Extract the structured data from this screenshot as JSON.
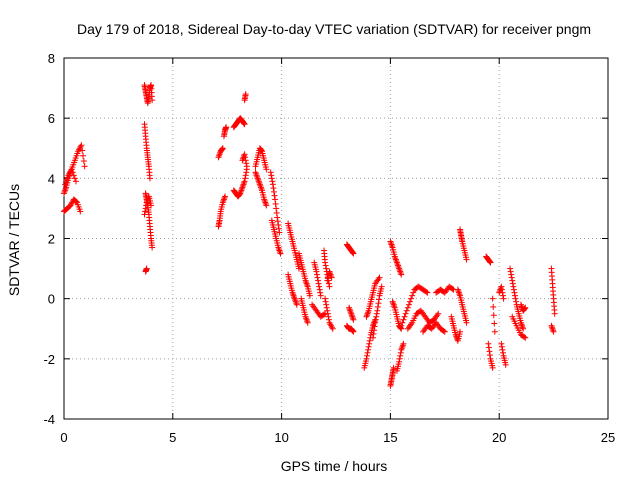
{
  "chart_data": {
    "type": "scatter",
    "title": "Day 179 of 2018, Sidereal Day-to-day VTEC variation (SDTVAR) for receiver pngm",
    "xlabel": "GPS time / hours",
    "ylabel": "SDTVAR / TECUs",
    "xlim": [
      0,
      25
    ],
    "ylim": [
      -4,
      8
    ],
    "xticks": [
      0,
      5,
      10,
      15,
      20,
      25
    ],
    "yticks": [
      -4,
      -2,
      0,
      2,
      4,
      6,
      8
    ],
    "xtick_labels": [
      "0",
      "5",
      "10",
      "15",
      "20",
      "25"
    ],
    "ytick_labels": [
      "-4",
      "-2",
      "0",
      "2",
      "4",
      "6",
      "8"
    ],
    "grid": true,
    "marker": "+",
    "color": "#ff0000",
    "series_segments": [
      {
        "x": [
          0.0,
          0.15,
          0.3,
          0.45,
          0.6,
          0.75
        ],
        "y": [
          2.9,
          3.0,
          3.1,
          3.3,
          3.2,
          2.9
        ]
      },
      {
        "x": [
          0.0,
          0.1,
          0.2,
          0.35,
          0.5,
          0.65,
          0.8,
          0.95
        ],
        "y": [
          3.5,
          3.7,
          4.0,
          4.3,
          4.6,
          4.9,
          5.1,
          4.4
        ]
      },
      {
        "x": [
          0.05,
          0.2,
          0.35,
          0.55
        ],
        "y": [
          3.8,
          4.1,
          4.3,
          3.9
        ]
      },
      {
        "x": [
          3.7,
          3.75,
          3.8,
          3.85,
          3.9,
          3.95,
          4.0,
          4.05
        ],
        "y": [
          7.1,
          6.9,
          6.7,
          6.5,
          6.7,
          7.0,
          7.1,
          6.6
        ]
      },
      {
        "x": [
          3.7,
          3.75,
          3.8,
          3.85,
          3.9,
          3.95
        ],
        "y": [
          5.8,
          5.4,
          5.0,
          4.7,
          4.4,
          4.0
        ]
      },
      {
        "x": [
          3.75,
          3.8,
          3.85,
          3.9,
          3.95,
          4.0,
          4.05
        ],
        "y": [
          3.5,
          3.3,
          3.1,
          2.8,
          2.4,
          2.0,
          1.7
        ]
      },
      {
        "x": [
          3.7,
          3.8,
          3.9,
          4.0
        ],
        "y": [
          2.8,
          3.2,
          3.4,
          3.1
        ]
      },
      {
        "x": [
          3.75,
          3.8
        ],
        "y": [
          0.9,
          1.0
        ]
      },
      {
        "x": [
          7.1,
          7.15,
          7.2,
          7.3,
          7.4
        ],
        "y": [
          2.4,
          2.6,
          2.9,
          3.2,
          3.4
        ]
      },
      {
        "x": [
          7.1,
          7.2,
          7.3
        ],
        "y": [
          4.7,
          4.9,
          5.0
        ]
      },
      {
        "x": [
          7.35,
          7.4,
          7.45
        ],
        "y": [
          5.4,
          5.6,
          5.7
        ]
      },
      {
        "x": [
          7.8,
          7.9,
          8.0,
          8.1,
          8.2,
          8.3
        ],
        "y": [
          5.7,
          5.8,
          5.9,
          6.0,
          5.9,
          5.8
        ]
      },
      {
        "x": [
          8.3,
          8.35
        ],
        "y": [
          6.6,
          6.8
        ]
      },
      {
        "x": [
          7.8,
          7.9,
          8.0,
          8.1,
          8.2,
          8.3,
          8.4
        ],
        "y": [
          3.6,
          3.5,
          3.4,
          3.5,
          3.7,
          3.9,
          4.3
        ]
      },
      {
        "x": [
          8.2,
          8.3,
          8.4
        ],
        "y": [
          4.6,
          4.8,
          4.4
        ]
      },
      {
        "x": [
          8.8,
          8.9,
          9.0,
          9.1,
          9.2,
          9.3
        ],
        "y": [
          4.4,
          4.7,
          5.0,
          4.9,
          4.6,
          4.3
        ]
      },
      {
        "x": [
          8.8,
          8.9,
          9.0,
          9.1,
          9.2,
          9.3
        ],
        "y": [
          4.2,
          4.0,
          3.8,
          3.6,
          3.3,
          3.1
        ]
      },
      {
        "x": [
          9.5,
          9.6,
          9.7,
          9.8,
          9.9
        ],
        "y": [
          4.2,
          3.8,
          3.3,
          2.7,
          2.2
        ]
      },
      {
        "x": [
          9.55,
          9.65,
          9.75,
          9.85,
          9.95
        ],
        "y": [
          2.6,
          2.3,
          2.0,
          1.7,
          1.5
        ]
      },
      {
        "x": [
          10.3,
          10.4,
          10.5,
          10.6,
          10.7,
          10.8
        ],
        "y": [
          2.5,
          2.2,
          1.9,
          1.6,
          1.3,
          1.0
        ]
      },
      {
        "x": [
          10.3,
          10.4,
          10.5,
          10.6,
          10.7
        ],
        "y": [
          0.8,
          0.5,
          0.2,
          0.0,
          -0.2
        ]
      },
      {
        "x": [
          10.8,
          10.9,
          11.0,
          11.1,
          11.2,
          11.3
        ],
        "y": [
          1.5,
          1.2,
          0.9,
          0.6,
          0.4,
          0.1
        ]
      },
      {
        "x": [
          10.9,
          11.0,
          11.1,
          11.2
        ],
        "y": [
          0.0,
          -0.3,
          -0.6,
          -0.8
        ]
      },
      {
        "x": [
          11.5,
          11.6,
          11.7,
          11.8
        ],
        "y": [
          1.2,
          0.9,
          0.5,
          0.1
        ]
      },
      {
        "x": [
          11.4,
          11.6,
          11.8,
          12.0
        ],
        "y": [
          -0.2,
          -0.4,
          -0.6,
          -0.5
        ]
      },
      {
        "x": [
          11.95,
          12.0,
          12.1,
          12.2
        ],
        "y": [
          1.6,
          1.2,
          0.8,
          0.4
        ]
      },
      {
        "x": [
          12.0,
          12.1,
          12.2,
          12.35
        ],
        "y": [
          0.0,
          -0.4,
          -0.8,
          -1.0
        ]
      },
      {
        "x": [
          12.1,
          12.2,
          12.3
        ],
        "y": [
          0.6,
          0.9,
          0.7
        ]
      },
      {
        "x": [
          13.0,
          13.1,
          13.2,
          13.3
        ],
        "y": [
          1.8,
          1.7,
          1.6,
          1.5
        ]
      },
      {
        "x": [
          13.0,
          13.1,
          13.2,
          13.3
        ],
        "y": [
          -0.9,
          -1.0,
          -1.0,
          -1.1
        ]
      },
      {
        "x": [
          13.1,
          13.2,
          13.3
        ],
        "y": [
          -0.3,
          -0.5,
          -0.7
        ]
      },
      {
        "x": [
          13.8,
          13.9,
          14.0,
          14.1,
          14.2,
          14.3
        ],
        "y": [
          -2.3,
          -2.0,
          -1.6,
          -1.2,
          -0.9,
          -0.7
        ]
      },
      {
        "x": [
          13.9,
          14.0,
          14.1,
          14.2,
          14.3,
          14.5
        ],
        "y": [
          -0.6,
          -0.4,
          -0.1,
          0.2,
          0.5,
          0.7
        ]
      },
      {
        "x": [
          14.2,
          14.3,
          14.4,
          14.5,
          14.6
        ],
        "y": [
          -1.3,
          -0.8,
          -0.4,
          0.1,
          0.4
        ]
      },
      {
        "x": [
          15.0,
          15.05,
          15.1,
          15.15
        ],
        "y": [
          -2.9,
          -2.7,
          -2.5,
          -2.3
        ]
      },
      {
        "x": [
          15.0,
          15.1,
          15.2,
          15.3,
          15.4,
          15.5
        ],
        "y": [
          1.9,
          1.7,
          1.4,
          1.2,
          1.0,
          0.8
        ]
      },
      {
        "x": [
          15.1,
          15.2,
          15.3,
          15.4,
          15.5
        ],
        "y": [
          -0.1,
          -0.3,
          -0.6,
          -0.9,
          -1.0
        ]
      },
      {
        "x": [
          15.3,
          15.4,
          15.5,
          15.6
        ],
        "y": [
          -2.4,
          -2.1,
          -1.7,
          -1.5
        ]
      },
      {
        "x": [
          15.5,
          15.7,
          15.9,
          16.1,
          16.3,
          16.5,
          16.7
        ],
        "y": [
          -0.9,
          -0.5,
          -0.1,
          0.3,
          0.4,
          0.3,
          0.2
        ]
      },
      {
        "x": [
          15.8,
          16.0,
          16.2,
          16.4,
          16.6,
          16.8,
          17.0,
          17.2
        ],
        "y": [
          -1.0,
          -0.8,
          -0.5,
          -0.4,
          -0.6,
          -0.8,
          -0.7,
          -0.5
        ]
      },
      {
        "x": [
          16.5,
          16.7,
          16.9,
          17.1,
          17.3,
          17.5
        ],
        "y": [
          -1.1,
          -0.9,
          -1.0,
          -0.8,
          -1.0,
          -1.1
        ]
      },
      {
        "x": [
          17.1,
          17.3,
          17.5,
          17.7,
          17.9
        ],
        "y": [
          0.2,
          0.3,
          0.2,
          0.4,
          0.3
        ]
      },
      {
        "x": [
          17.8,
          17.9,
          18.0,
          18.1,
          18.2
        ],
        "y": [
          -0.6,
          -0.9,
          -1.2,
          -1.4,
          -1.1
        ]
      },
      {
        "x": [
          18.2,
          18.25,
          18.3,
          18.4,
          18.5
        ],
        "y": [
          2.3,
          2.1,
          1.9,
          1.6,
          1.3
        ]
      },
      {
        "x": [
          18.1,
          18.2,
          18.3,
          18.4,
          18.5
        ],
        "y": [
          0.3,
          0.1,
          -0.2,
          -0.5,
          -0.8
        ]
      },
      {
        "x": [
          19.4,
          19.5,
          19.6
        ],
        "y": [
          1.4,
          1.3,
          1.2
        ]
      },
      {
        "x": [
          19.5,
          19.6,
          19.7
        ],
        "y": [
          -1.5,
          -2.0,
          -2.3
        ]
      },
      {
        "x": [
          19.7,
          19.8
        ],
        "y": [
          0.0,
          -1.1
        ]
      },
      {
        "x": [
          20.1,
          20.2,
          20.3
        ],
        "y": [
          -1.5,
          -1.9,
          -2.2
        ]
      },
      {
        "x": [
          20.0,
          20.1,
          20.2
        ],
        "y": [
          0.2,
          0.4,
          0.0
        ]
      },
      {
        "x": [
          20.5,
          20.6,
          20.7,
          20.8,
          20.9,
          21.0,
          21.1
        ],
        "y": [
          1.0,
          0.6,
          0.2,
          -0.2,
          -0.5,
          -0.8,
          -1.0
        ]
      },
      {
        "x": [
          20.6,
          20.8,
          21.0,
          21.2
        ],
        "y": [
          -0.6,
          -0.9,
          -1.2,
          -1.3
        ]
      },
      {
        "x": [
          21.0,
          21.1,
          21.2
        ],
        "y": [
          -0.2,
          -0.4,
          -0.3
        ]
      },
      {
        "x": [
          22.4,
          22.45,
          22.5,
          22.55
        ],
        "y": [
          1.0,
          0.5,
          0.0,
          -0.5
        ]
      },
      {
        "x": [
          22.4,
          22.5
        ],
        "y": [
          -0.9,
          -1.1
        ]
      }
    ]
  }
}
